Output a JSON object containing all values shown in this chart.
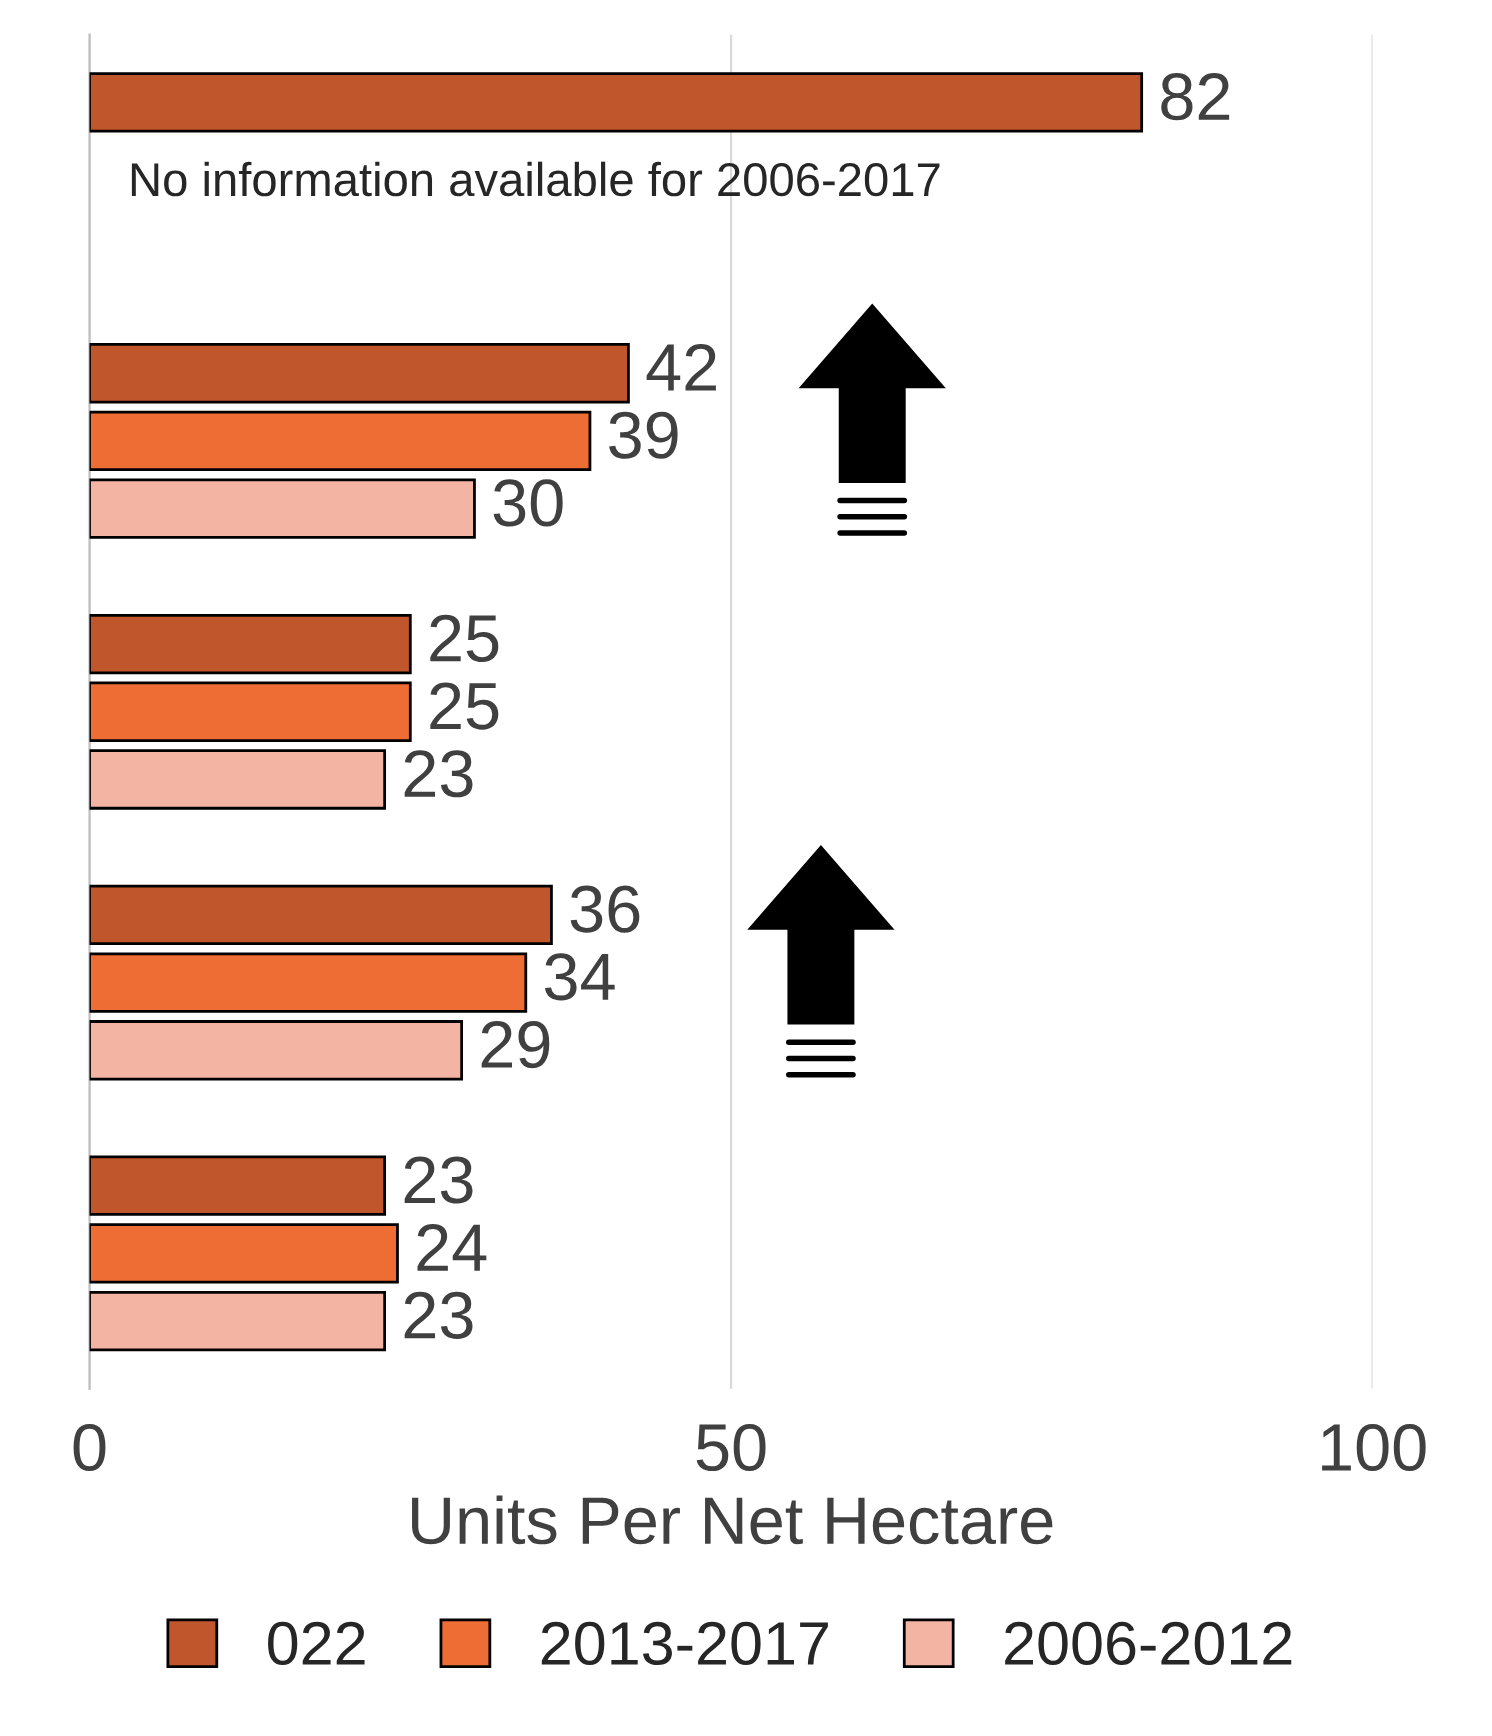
{
  "chart_data": {
    "type": "bar",
    "orientation": "horizontal",
    "xlabel": "Units Per Net Hectare",
    "categories": [
      null,
      null,
      null,
      null,
      null
    ],
    "series": [
      {
        "name": "022",
        "color": "#c0562b",
        "values": [
          82,
          42,
          25,
          36,
          23
        ]
      },
      {
        "name": "2013-2017",
        "color": "#ed6d35",
        "values": [
          null,
          39,
          25,
          34,
          24
        ]
      },
      {
        "name": "2006-2012",
        "color": "#f4b4a4",
        "values": [
          null,
          30,
          23,
          29,
          23
        ]
      }
    ],
    "xlim": [
      0,
      100
    ],
    "xticks": [
      0,
      50,
      100
    ],
    "grid": "x",
    "legend": "bottom",
    "data_labels": true,
    "annotations": [
      "No information available for 2006-2017"
    ]
  }
}
